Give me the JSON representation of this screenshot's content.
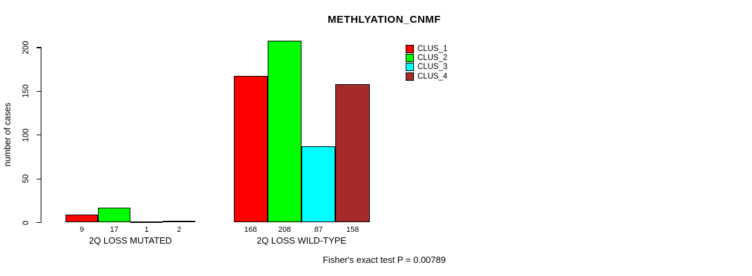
{
  "chart_data": {
    "type": "bar",
    "title": "METHLYATION_CNMF",
    "xlabel": "",
    "ylabel": "number of cases",
    "ylim": [
      0,
      200
    ],
    "yticks": [
      0,
      50,
      100,
      150,
      200
    ],
    "grid": false,
    "legend_position": "top-right",
    "categories": [
      "2Q LOSS MUTATED",
      "2Q LOSS WILD-TYPE"
    ],
    "series": [
      {
        "name": "CLUS_1",
        "color": "#ff0000",
        "values": [
          9,
          168
        ]
      },
      {
        "name": "CLUS_2",
        "color": "#00ff00",
        "values": [
          17,
          208
        ]
      },
      {
        "name": "CLUS_3",
        "color": "#00ffff",
        "values": [
          1,
          87
        ]
      },
      {
        "name": "CLUS_4",
        "color": "#a52a2a",
        "values": [
          2,
          158
        ]
      }
    ],
    "bar_value_labels": [
      [
        "9",
        "17",
        "1",
        "2"
      ],
      [
        "168",
        "208",
        "87",
        "158"
      ]
    ],
    "annotation": "Fisher's exact test P = 0.00789"
  }
}
